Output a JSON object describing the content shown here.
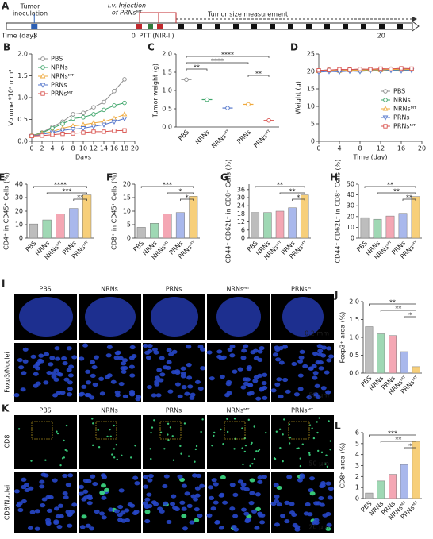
{
  "timeline": {
    "panel": "A",
    "inoculation": [
      "Tumor",
      "inoculation"
    ],
    "injection": [
      "i.v. Injection",
      "of PRNsᴹᵀ"
    ],
    "measurement": "Tumor size measurement",
    "axis_label": "Time (day)",
    "ptt": "PTT (NIR-II)",
    "xlim": [
      -10,
      22
    ],
    "ticks": [
      -8,
      0,
      20
    ]
  },
  "images": {
    "I": {
      "panel": "I",
      "columns": [
        "PBS",
        "NRNs",
        "PRNs",
        "NRNsᴹᵀ",
        "PRNsᴹᵀ"
      ],
      "stains": [
        "Foxp3/Nuclei"
      ],
      "scale_bars": [
        "0.2 mm",
        "50 μm"
      ]
    },
    "K": {
      "panel": "K",
      "columns": [
        "PBS",
        "NRNs",
        "PRNs",
        "NRNsᴹᵀ",
        "PRNsᴹᵀ"
      ],
      "stains": [
        "CD8",
        "CD8/Nuclei"
      ],
      "scale_bars": [
        "50 μm",
        "20 μm"
      ]
    }
  },
  "chart_data": [
    {
      "panel": "B",
      "type": "line",
      "xlabel": "Days",
      "ylabel": "Volume *10³ mm³",
      "legend": "upper left",
      "x": [
        0,
        2,
        4,
        6,
        8,
        10,
        12,
        14,
        16,
        18
      ],
      "xlim": [
        0,
        20
      ],
      "xticks": [
        0,
        2,
        4,
        6,
        8,
        10,
        12,
        14,
        16,
        18,
        20
      ],
      "ylim": [
        0,
        2
      ],
      "yticks": [
        {
          "value": 0,
          "label": "0.0"
        },
        {
          "value": 0.5,
          "label": "0.5"
        },
        {
          "value": 1,
          "label": "1.0"
        },
        {
          "value": 1.5,
          "label": "1.5"
        },
        {
          "value": 2,
          "label": "2.0"
        }
      ],
      "series": [
        {
          "name": "PBS",
          "color": "#8c8c8c",
          "marker": "circle",
          "values": [
            0.13,
            0.2,
            0.33,
            0.45,
            0.62,
            0.65,
            0.78,
            0.9,
            1.15,
            1.42
          ]
        },
        {
          "name": "NRNs",
          "color": "#3fa66b",
          "marker": "circle",
          "values": [
            0.13,
            0.19,
            0.3,
            0.4,
            0.52,
            0.55,
            0.62,
            0.72,
            0.82,
            0.88
          ]
        },
        {
          "name": "NRNsᴹᵀ",
          "color": "#efa93c",
          "marker": "triangle",
          "values": [
            0.12,
            0.18,
            0.22,
            0.3,
            0.35,
            0.38,
            0.42,
            0.45,
            0.52,
            0.62
          ]
        },
        {
          "name": "PRNs",
          "color": "#5577cc",
          "marker": "triangle-down",
          "values": [
            0.12,
            0.16,
            0.2,
            0.25,
            0.28,
            0.3,
            0.34,
            0.38,
            0.45,
            0.52
          ]
        },
        {
          "name": "PRNsᴹᵀ",
          "color": "#d9534f",
          "marker": "square",
          "values": [
            0.12,
            0.13,
            0.15,
            0.17,
            0.18,
            0.2,
            0.22,
            0.22,
            0.24,
            0.25
          ]
        }
      ]
    },
    {
      "panel": "C",
      "type": "dot",
      "ylabel": "Tumor weight (g)",
      "categories": [
        "PBS",
        "NRNs",
        "NRNsᴹᵀ",
        "PRNs",
        "PRNsᴹᵀ"
      ],
      "colors": [
        "#8c8c8c",
        "#3fa66b",
        "#5577cc",
        "#efa93c",
        "#d9534f"
      ],
      "values": [
        1.3,
        0.75,
        0.52,
        0.62,
        0.18
      ],
      "ylim": [
        0,
        2
      ],
      "yticks": [
        {
          "value": 0,
          "label": "0.0"
        },
        {
          "value": 0.5,
          "label": "0.5"
        },
        {
          "value": 1,
          "label": "1.0"
        },
        {
          "value": 1.5,
          "label": "1.5"
        },
        {
          "value": 2,
          "label": "2.0"
        }
      ],
      "annotations": [
        "****",
        "****",
        "**",
        "**"
      ]
    },
    {
      "panel": "D",
      "type": "line",
      "xlabel": "Time (day)",
      "ylabel": "Weight (g)",
      "legend": "center right",
      "x": [
        0,
        2,
        4,
        6,
        8,
        10,
        12,
        14,
        16,
        18
      ],
      "xlim": [
        0,
        20
      ],
      "xticks": [
        0,
        4,
        8,
        12,
        16,
        20
      ],
      "ylim": [
        0,
        25
      ],
      "yticks": [
        0,
        5,
        10,
        15,
        20,
        25
      ],
      "series": [
        {
          "name": "PBS",
          "color": "#8c8c8c",
          "marker": "circle",
          "values": [
            20.2,
            20.5,
            20.3,
            20.6,
            20.4,
            20.7,
            20.5,
            20.8,
            20.6,
            20.7
          ]
        },
        {
          "name": "NRNs",
          "color": "#3fa66b",
          "marker": "circle",
          "values": [
            20,
            20.2,
            20.1,
            20.3,
            20.2,
            20.4,
            20.3,
            20.5,
            20.4,
            20.5
          ]
        },
        {
          "name": "NRNsᴹᵀ",
          "color": "#efa93c",
          "marker": "triangle",
          "values": [
            20.1,
            20.3,
            20.2,
            20.4,
            20.3,
            20.5,
            20.4,
            20.6,
            20.5,
            20.6
          ]
        },
        {
          "name": "PRNs",
          "color": "#5577cc",
          "marker": "triangle-down",
          "values": [
            19.8,
            20,
            19.9,
            20.1,
            20,
            20.2,
            20.1,
            20.3,
            20.2,
            20.3
          ]
        },
        {
          "name": "PRNsᴹᵀ",
          "color": "#d9534f",
          "marker": "square",
          "values": [
            20.3,
            20.4,
            20.6,
            20.5,
            20.7,
            20.6,
            20.8,
            20.7,
            20.9,
            20.8
          ]
        }
      ]
    },
    {
      "panel": "E",
      "type": "bar",
      "ylabel": "CD4⁺ in CD45⁺ Cells (%)",
      "categories": [
        "PBS",
        "NRNs",
        "NRNsᴹᵀ",
        "PRNs",
        "PRNsᴹᵀ"
      ],
      "colors": [
        "#bdbdbd",
        "#9fd8b4",
        "#f4a7b4",
        "#a9b8ec",
        "#f7cf7a"
      ],
      "values": [
        10.5,
        13.5,
        18,
        22,
        32
      ],
      "ylim": [
        0,
        40
      ],
      "yticks": [
        0,
        10,
        20,
        30,
        40
      ],
      "annotations": [
        "****",
        "***",
        "**"
      ]
    },
    {
      "panel": "F",
      "type": "bar",
      "ylabel": "CD8⁺ in CD45⁺ Cells (%)",
      "categories": [
        "PBS",
        "NRNs",
        "NRNsᴹᵀ",
        "PRNs",
        "PRNsᴹᵀ"
      ],
      "colors": [
        "#bdbdbd",
        "#9fd8b4",
        "#f4a7b4",
        "#a9b8ec",
        "#f7cf7a"
      ],
      "values": [
        4,
        5.5,
        9,
        9.5,
        15.5
      ],
      "ylim": [
        0,
        20
      ],
      "yticks": [
        0,
        5,
        10,
        15,
        20
      ],
      "annotations": [
        "***",
        "*",
        "*"
      ]
    },
    {
      "panel": "G",
      "type": "bar",
      "ylabel": "CD44⁺ CD62L⁺ in CD8⁺ Cells (%)",
      "categories": [
        "PBS",
        "NRNs",
        "NRNsᴹᵀ",
        "PRNs",
        "PRNsᴹᵀ"
      ],
      "colors": [
        "#bdbdbd",
        "#9fd8b4",
        "#f4a7b4",
        "#a9b8ec",
        "#f7cf7a"
      ],
      "values": [
        19,
        19,
        20,
        22.5,
        32
      ],
      "ylim": [
        0,
        40
      ],
      "yticks": [
        0,
        6,
        12,
        18,
        24,
        30,
        36
      ],
      "annotations": [
        "**",
        "**",
        "*"
      ]
    },
    {
      "panel": "H",
      "type": "bar",
      "ylabel": "CD44⁺ CD62L⁻ in CD8⁺ Cells (%)",
      "categories": [
        "PBS",
        "NRNs",
        "NRNsᴹᵀ",
        "PRNs",
        "PRNsᴹᵀ"
      ],
      "colors": [
        "#bdbdbd",
        "#9fd8b4",
        "#f4a7b4",
        "#a9b8ec",
        "#f7cf7a"
      ],
      "values": [
        19,
        17.5,
        20.5,
        23,
        38.5
      ],
      "ylim": [
        0,
        50
      ],
      "yticks": [
        0,
        10,
        20,
        30,
        40,
        50
      ],
      "annotations": [
        "**",
        "**",
        "**"
      ]
    },
    {
      "panel": "J",
      "type": "bar",
      "ylabel": "Foxp3⁺ area (%)",
      "categories": [
        "PBS",
        "NRNs",
        "PRNs",
        "NRNsᴹᵀ",
        "PRNsᴹᵀ"
      ],
      "colors": [
        "#bdbdbd",
        "#9fd8b4",
        "#f4a7b4",
        "#a9b8ec",
        "#f7cf7a"
      ],
      "values": [
        1.3,
        1.1,
        1.05,
        0.6,
        0.18
      ],
      "ylim": [
        0,
        2
      ],
      "yticks": [
        {
          "value": 0,
          "label": "0.0"
        },
        {
          "value": 0.5,
          "label": "0.5"
        },
        {
          "value": 1,
          "label": "1.0"
        },
        {
          "value": 1.5,
          "label": "1.5"
        },
        {
          "value": 2,
          "label": "2.0"
        }
      ],
      "annotations": [
        "**",
        "**",
        "*"
      ]
    },
    {
      "panel": "L",
      "type": "bar",
      "ylabel": "CD8⁺ area (%)",
      "categories": [
        "PBS",
        "NRNs",
        "PRNs",
        "NRNsᴹᵀ",
        "PRNsᴹᵀ"
      ],
      "colors": [
        "#bdbdbd",
        "#9fd8b4",
        "#f4a7b4",
        "#a9b8ec",
        "#f7cf7a"
      ],
      "values": [
        0.5,
        1.6,
        2.2,
        3.1,
        5.2
      ],
      "ylim": [
        0,
        6
      ],
      "yticks": [
        0,
        1,
        2,
        3,
        4,
        5,
        6
      ],
      "annotations": [
        "***",
        "**",
        "*"
      ]
    }
  ]
}
